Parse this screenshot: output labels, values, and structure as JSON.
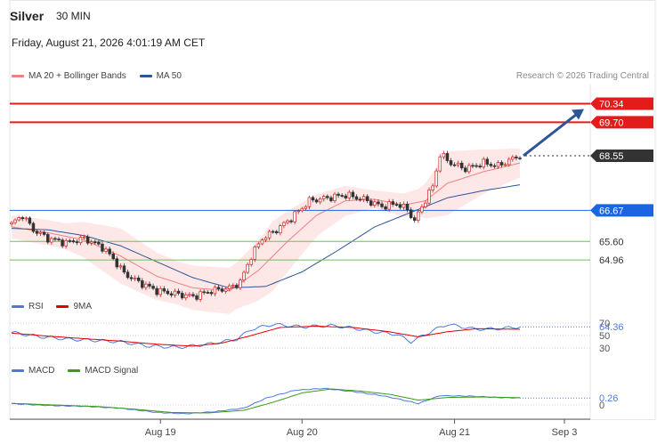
{
  "header": {
    "symbol": "Silver",
    "timeframe": "30 MIN",
    "datetime": "Friday, August 21, 2026 4:01:19 AM CET"
  },
  "credit": "Research © 2026 Trading Central",
  "legends": {
    "main": [
      {
        "label": "MA 20 + Bollinger Bands",
        "color": "#f08080"
      },
      {
        "label": "MA 50",
        "color": "#2e5596"
      }
    ],
    "rsi": [
      {
        "label": "RSI",
        "color": "#4f79d9"
      },
      {
        "label": "9MA",
        "color": "#e00000"
      }
    ],
    "macd": [
      {
        "label": "MACD",
        "color": "#4f79d9"
      },
      {
        "label": "MACD Signal",
        "color": "#3a9a1a"
      }
    ]
  },
  "chart_data": [
    {
      "type": "candlestick",
      "title": "Silver 30 MIN",
      "x_ticks": [
        "Aug 19",
        "Aug 20",
        "Aug 21",
        "Sep 3"
      ],
      "ylim": [
        63.8,
        71.0
      ],
      "current_price": 68.55,
      "levels": [
        {
          "value": 70.34,
          "label": "70.34",
          "color": "#e31b1b",
          "kind": "resistance"
        },
        {
          "value": 69.7,
          "label": "69.70",
          "color": "#e31b1b",
          "kind": "resistance"
        },
        {
          "value": 68.55,
          "label": "68.55",
          "color": "#333333",
          "kind": "last-price"
        },
        {
          "value": 66.67,
          "label": "66.67",
          "color": "#1a66e0",
          "kind": "pivot"
        },
        {
          "value": 65.6,
          "label": "65.60",
          "color": "#6fbf5a",
          "kind": "support"
        },
        {
          "value": 64.96,
          "label": "64.96",
          "color": "#6fbf5a",
          "kind": "support"
        }
      ],
      "close_path": [
        {
          "i": 0,
          "v": 66.2
        },
        {
          "i": 3,
          "v": 66.5
        },
        {
          "i": 6,
          "v": 66.0
        },
        {
          "i": 10,
          "v": 65.7
        },
        {
          "i": 15,
          "v": 65.55
        },
        {
          "i": 20,
          "v": 65.7
        },
        {
          "i": 25,
          "v": 65.4
        },
        {
          "i": 28,
          "v": 65.0
        },
        {
          "i": 31,
          "v": 64.5
        },
        {
          "i": 35,
          "v": 64.2
        },
        {
          "i": 40,
          "v": 63.9
        },
        {
          "i": 45,
          "v": 63.8
        },
        {
          "i": 50,
          "v": 63.7
        },
        {
          "i": 55,
          "v": 63.9
        },
        {
          "i": 60,
          "v": 64.0
        },
        {
          "i": 63,
          "v": 64.2
        },
        {
          "i": 66,
          "v": 65.1
        },
        {
          "i": 69,
          "v": 65.7
        },
        {
          "i": 73,
          "v": 66.0
        },
        {
          "i": 77,
          "v": 66.4
        },
        {
          "i": 82,
          "v": 67.0
        },
        {
          "i": 87,
          "v": 67.1
        },
        {
          "i": 92,
          "v": 67.2
        },
        {
          "i": 97,
          "v": 67.05
        },
        {
          "i": 102,
          "v": 66.8
        },
        {
          "i": 106,
          "v": 66.9
        },
        {
          "i": 109,
          "v": 66.7
        },
        {
          "i": 111,
          "v": 66.3
        },
        {
          "i": 113,
          "v": 66.8
        },
        {
          "i": 116,
          "v": 67.5
        },
        {
          "i": 118,
          "v": 68.6
        },
        {
          "i": 121,
          "v": 68.3
        },
        {
          "i": 125,
          "v": 68.1
        },
        {
          "i": 130,
          "v": 68.3
        },
        {
          "i": 134,
          "v": 68.2
        },
        {
          "i": 138,
          "v": 68.45
        },
        {
          "i": 140,
          "v": 68.55
        }
      ],
      "bollinger_center": [
        {
          "i": 0,
          "v": 66.1
        },
        {
          "i": 10,
          "v": 65.9
        },
        {
          "i": 20,
          "v": 65.65
        },
        {
          "i": 30,
          "v": 65.1
        },
        {
          "i": 40,
          "v": 64.4
        },
        {
          "i": 50,
          "v": 64.0
        },
        {
          "i": 60,
          "v": 63.9
        },
        {
          "i": 68,
          "v": 64.6
        },
        {
          "i": 76,
          "v": 65.6
        },
        {
          "i": 84,
          "v": 66.5
        },
        {
          "i": 92,
          "v": 67.0
        },
        {
          "i": 100,
          "v": 67.05
        },
        {
          "i": 108,
          "v": 66.85
        },
        {
          "i": 114,
          "v": 67.0
        },
        {
          "i": 120,
          "v": 67.6
        },
        {
          "i": 130,
          "v": 68.0
        },
        {
          "i": 140,
          "v": 68.3
        }
      ],
      "bollinger_width": [
        {
          "i": 0,
          "v": 0.4
        },
        {
          "i": 15,
          "v": 0.45
        },
        {
          "i": 30,
          "v": 0.95
        },
        {
          "i": 45,
          "v": 0.75
        },
        {
          "i": 62,
          "v": 0.8
        },
        {
          "i": 72,
          "v": 1.2
        },
        {
          "i": 85,
          "v": 0.7
        },
        {
          "i": 100,
          "v": 0.3
        },
        {
          "i": 112,
          "v": 0.45
        },
        {
          "i": 120,
          "v": 1.1
        },
        {
          "i": 132,
          "v": 0.7
        },
        {
          "i": 140,
          "v": 0.5
        }
      ],
      "ma50": [
        {
          "i": 0,
          "v": 66.05
        },
        {
          "i": 10,
          "v": 66.0
        },
        {
          "i": 20,
          "v": 65.8
        },
        {
          "i": 30,
          "v": 65.45
        },
        {
          "i": 40,
          "v": 64.9
        },
        {
          "i": 50,
          "v": 64.35
        },
        {
          "i": 60,
          "v": 64.0
        },
        {
          "i": 70,
          "v": 64.05
        },
        {
          "i": 80,
          "v": 64.55
        },
        {
          "i": 90,
          "v": 65.3
        },
        {
          "i": 100,
          "v": 66.1
        },
        {
          "i": 110,
          "v": 66.6
        },
        {
          "i": 120,
          "v": 67.1
        },
        {
          "i": 130,
          "v": 67.35
        },
        {
          "i": 140,
          "v": 67.55
        }
      ]
    },
    {
      "type": "line",
      "title": "RSI",
      "ylim": [
        20,
        80
      ],
      "ref_levels": [
        70,
        50,
        30
      ],
      "y_tick_labels": [
        "70",
        "50",
        "30"
      ],
      "value_label": "64.36",
      "rsi": [
        {
          "i": 0,
          "v": 55
        },
        {
          "i": 8,
          "v": 48
        },
        {
          "i": 16,
          "v": 44
        },
        {
          "i": 24,
          "v": 42
        },
        {
          "i": 30,
          "v": 40
        },
        {
          "i": 38,
          "v": 33
        },
        {
          "i": 46,
          "v": 31
        },
        {
          "i": 54,
          "v": 36
        },
        {
          "i": 62,
          "v": 44
        },
        {
          "i": 66,
          "v": 60
        },
        {
          "i": 72,
          "v": 68
        },
        {
          "i": 80,
          "v": 64
        },
        {
          "i": 88,
          "v": 66
        },
        {
          "i": 94,
          "v": 62
        },
        {
          "i": 100,
          "v": 56
        },
        {
          "i": 106,
          "v": 52
        },
        {
          "i": 110,
          "v": 40
        },
        {
          "i": 116,
          "v": 58
        },
        {
          "i": 120,
          "v": 68
        },
        {
          "i": 128,
          "v": 60
        },
        {
          "i": 134,
          "v": 61
        },
        {
          "i": 140,
          "v": 64
        }
      ],
      "ma9": [
        {
          "i": 0,
          "v": 54
        },
        {
          "i": 10,
          "v": 49
        },
        {
          "i": 20,
          "v": 45
        },
        {
          "i": 30,
          "v": 41
        },
        {
          "i": 40,
          "v": 36
        },
        {
          "i": 50,
          "v": 33
        },
        {
          "i": 58,
          "v": 38
        },
        {
          "i": 66,
          "v": 50
        },
        {
          "i": 74,
          "v": 63
        },
        {
          "i": 84,
          "v": 65
        },
        {
          "i": 94,
          "v": 63
        },
        {
          "i": 104,
          "v": 56
        },
        {
          "i": 112,
          "v": 48
        },
        {
          "i": 120,
          "v": 56
        },
        {
          "i": 128,
          "v": 61
        },
        {
          "i": 140,
          "v": 60
        }
      ]
    },
    {
      "type": "line",
      "title": "MACD",
      "ylim": [
        -0.5,
        0.9
      ],
      "zero_label": "0",
      "value_label": "0.26",
      "macd": [
        {
          "i": 0,
          "v": 0.05
        },
        {
          "i": 10,
          "v": -0.02
        },
        {
          "i": 20,
          "v": -0.05
        },
        {
          "i": 30,
          "v": -0.12
        },
        {
          "i": 40,
          "v": -0.28
        },
        {
          "i": 48,
          "v": -0.33
        },
        {
          "i": 56,
          "v": -0.25
        },
        {
          "i": 64,
          "v": -0.12
        },
        {
          "i": 70,
          "v": 0.25
        },
        {
          "i": 78,
          "v": 0.55
        },
        {
          "i": 86,
          "v": 0.62
        },
        {
          "i": 94,
          "v": 0.5
        },
        {
          "i": 102,
          "v": 0.35
        },
        {
          "i": 108,
          "v": 0.18
        },
        {
          "i": 112,
          "v": 0.05
        },
        {
          "i": 118,
          "v": 0.35
        },
        {
          "i": 126,
          "v": 0.33
        },
        {
          "i": 134,
          "v": 0.28
        },
        {
          "i": 140,
          "v": 0.26
        }
      ],
      "signal": [
        {
          "i": 0,
          "v": 0.06
        },
        {
          "i": 12,
          "v": 0.0
        },
        {
          "i": 24,
          "v": -0.06
        },
        {
          "i": 34,
          "v": -0.16
        },
        {
          "i": 44,
          "v": -0.28
        },
        {
          "i": 54,
          "v": -0.3
        },
        {
          "i": 64,
          "v": -0.2
        },
        {
          "i": 72,
          "v": 0.1
        },
        {
          "i": 80,
          "v": 0.45
        },
        {
          "i": 88,
          "v": 0.6
        },
        {
          "i": 96,
          "v": 0.52
        },
        {
          "i": 104,
          "v": 0.4
        },
        {
          "i": 112,
          "v": 0.18
        },
        {
          "i": 120,
          "v": 0.28
        },
        {
          "i": 130,
          "v": 0.3
        },
        {
          "i": 140,
          "v": 0.27
        }
      ]
    }
  ]
}
